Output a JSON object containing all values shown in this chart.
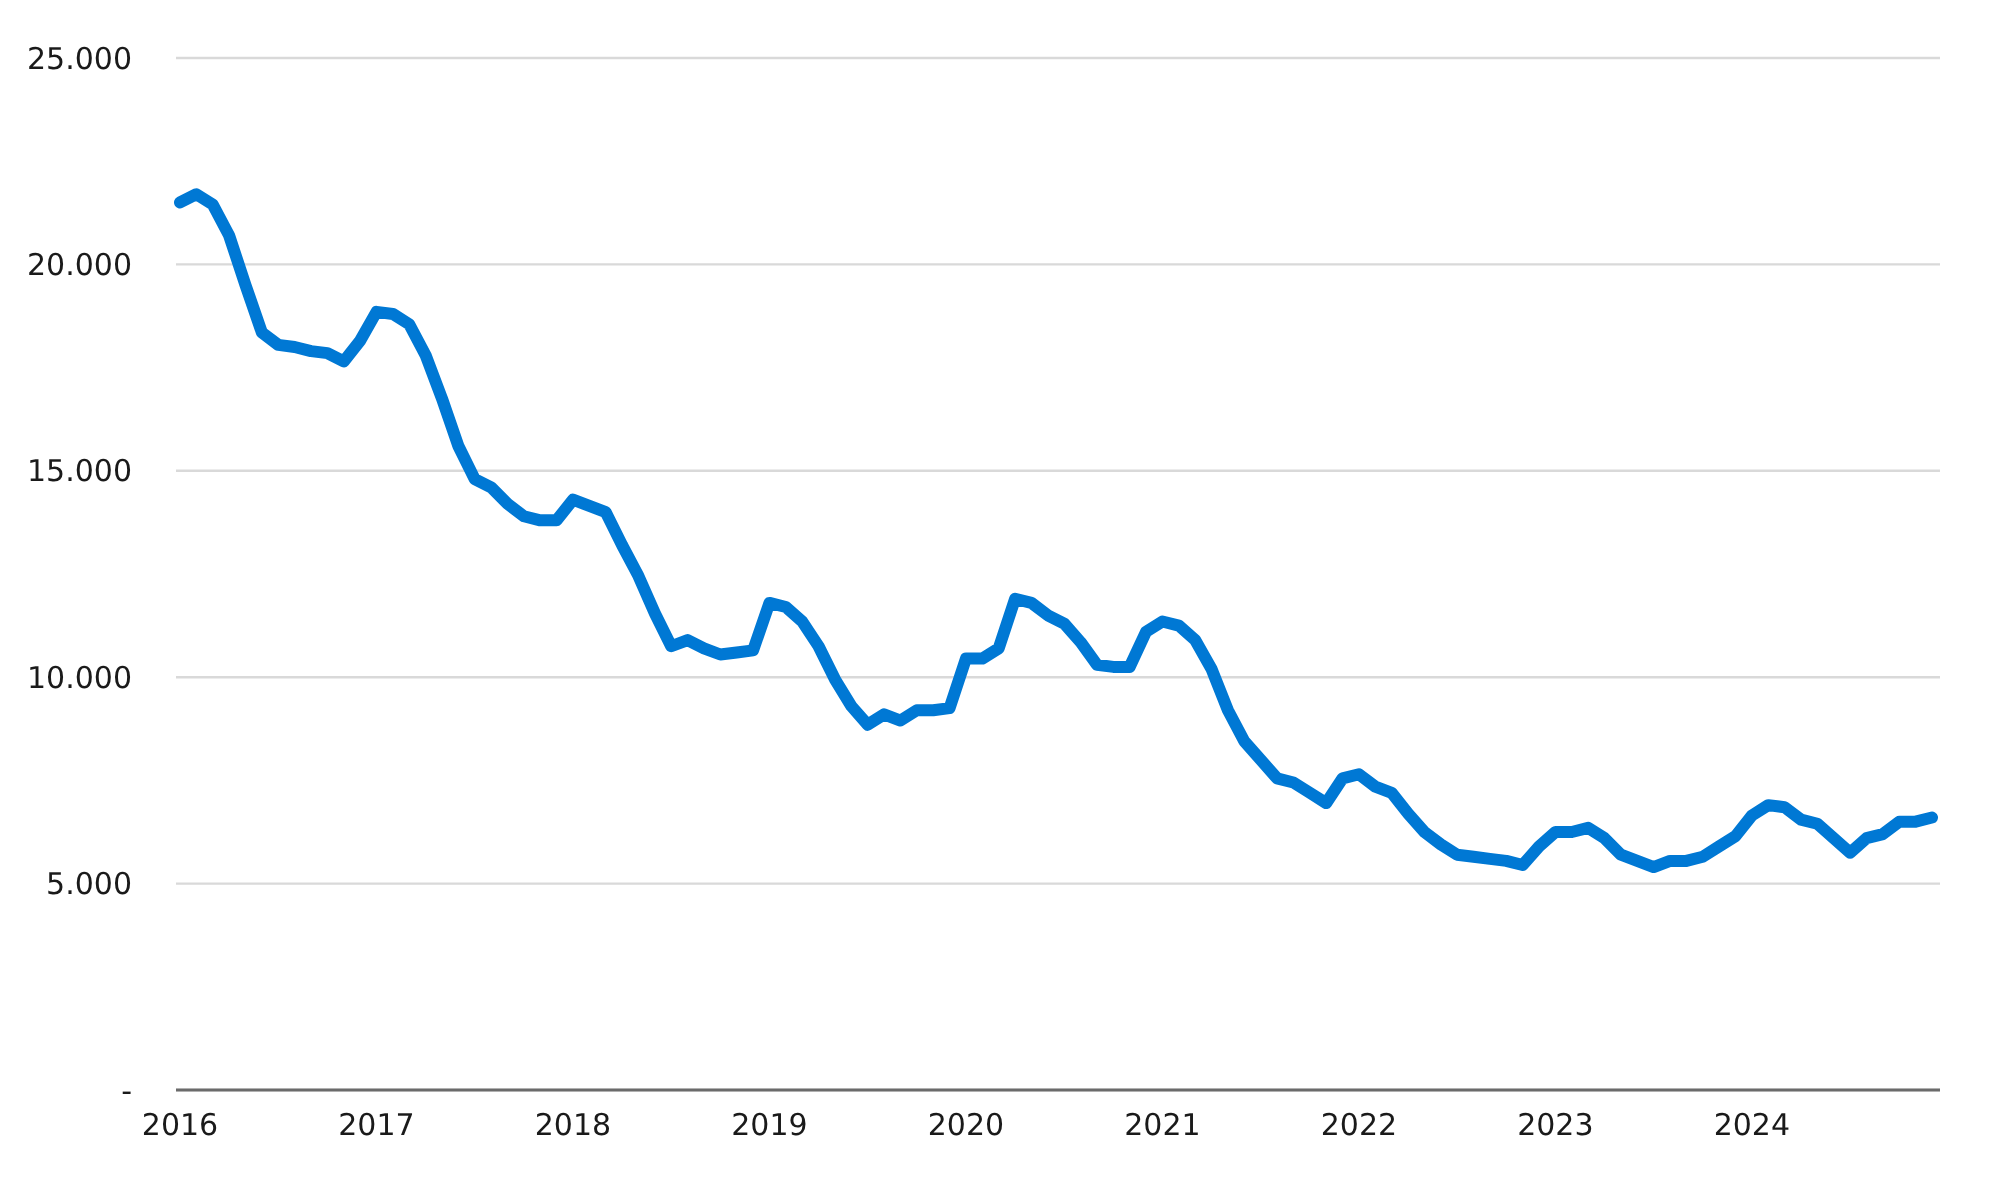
{
  "chart_data": {
    "type": "line",
    "categories": [
      "2016",
      null,
      null,
      null,
      null,
      null,
      null,
      null,
      null,
      null,
      null,
      null,
      "2017",
      null,
      null,
      null,
      null,
      null,
      null,
      null,
      null,
      null,
      null,
      null,
      "2018",
      null,
      null,
      null,
      null,
      null,
      null,
      null,
      null,
      null,
      null,
      null,
      "2019",
      null,
      null,
      null,
      null,
      null,
      null,
      null,
      null,
      null,
      null,
      null,
      "2020",
      null,
      null,
      null,
      null,
      null,
      null,
      null,
      null,
      null,
      null,
      null,
      "2021",
      null,
      null,
      null,
      null,
      null,
      null,
      null,
      null,
      null,
      null,
      null,
      "2022",
      null,
      null,
      null,
      null,
      null,
      null,
      null,
      null,
      null,
      null,
      null,
      "2023",
      null,
      null,
      null,
      null,
      null,
      null,
      null,
      null,
      null,
      null,
      null,
      "2024",
      null,
      null,
      null,
      null,
      null,
      null,
      null,
      null,
      null,
      null,
      null
    ],
    "series": [
      {
        "color": "#0078d4",
        "values": [
          21500,
          21700,
          21450,
          20700,
          19500,
          18350,
          18050,
          18000,
          17900,
          17850,
          17650,
          18150,
          18850,
          18800,
          18550,
          17800,
          16750,
          15600,
          14800,
          14600,
          14200,
          13900,
          13800,
          13800,
          14300,
          14150,
          14000,
          13200,
          12450,
          11550,
          10750,
          10900,
          10700,
          10550,
          10600,
          10650,
          11800,
          11700,
          11350,
          10750,
          9950,
          9300,
          8850,
          9100,
          8950,
          9200,
          9200,
          9250,
          10450,
          10450,
          10700,
          11900,
          11800,
          11500,
          11300,
          10850,
          10300,
          10250,
          10250,
          11100,
          11350,
          11250,
          10900,
          10200,
          9200,
          8450,
          8000,
          7550,
          7450,
          7200,
          6950,
          7550,
          7650,
          7350,
          7200,
          6700,
          6250,
          5950,
          5700,
          5650,
          5600,
          5550,
          5450,
          5900,
          6250,
          6250,
          6350,
          6100,
          5700,
          5550,
          5400,
          5550,
          5550,
          5650,
          5900,
          6150,
          6650,
          6900,
          6850,
          6550,
          6450,
          6100,
          5750,
          6100,
          6200,
          6500,
          6500,
          6600
        ]
      }
    ],
    "ylim": [
      0,
      25000
    ],
    "yticks": [
      {
        "value": 0,
        "label": "-"
      },
      {
        "value": 5000,
        "label": "5.000"
      },
      {
        "value": 10000,
        "label": "10.000"
      },
      {
        "value": 15000,
        "label": "15.000"
      },
      {
        "value": 20000,
        "label": "20.000"
      },
      {
        "value": 25000,
        "label": "25.000"
      }
    ],
    "grid": "y"
  }
}
